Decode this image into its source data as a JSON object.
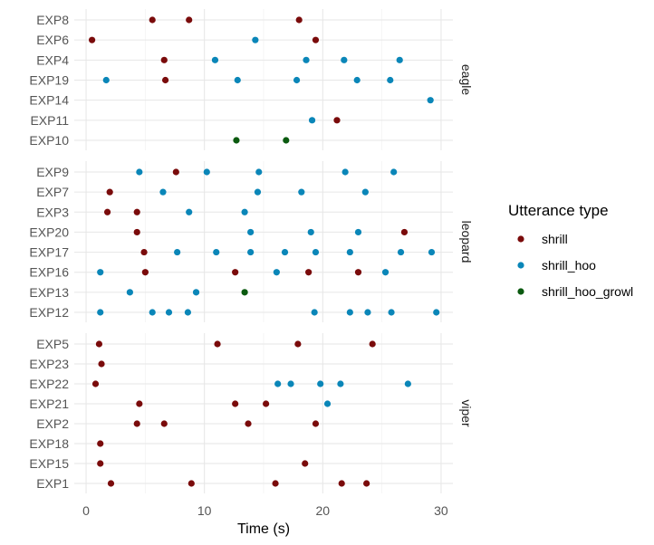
{
  "chart_data": {
    "type": "scatter",
    "xlabel": "Time (s)",
    "xlim": [
      -1,
      31
    ],
    "x_ticks": [
      0,
      10,
      20,
      30
    ],
    "grid": true,
    "legend": {
      "title": "Utterance type",
      "position": "right",
      "entries": [
        {
          "name": "shrill",
          "color": "#7a0b0b"
        },
        {
          "name": "shrill_hoo",
          "color": "#0a86b8"
        },
        {
          "name": "shrill_hoo_growl",
          "color": "#0b5a10"
        }
      ]
    },
    "facets": [
      {
        "label": "eagle",
        "rows": [
          "EXP8",
          "EXP6",
          "EXP4",
          "EXP19",
          "EXP14",
          "EXP11",
          "EXP10"
        ],
        "points": [
          {
            "row": "EXP8",
            "type": "shrill",
            "times": [
              5.6,
              8.7,
              18.0
            ]
          },
          {
            "row": "EXP6",
            "type": "shrill",
            "times": [
              0.5,
              19.4
            ]
          },
          {
            "row": "EXP6",
            "type": "shrill_hoo",
            "times": [
              14.3
            ]
          },
          {
            "row": "EXP4",
            "type": "shrill",
            "times": [
              6.6
            ]
          },
          {
            "row": "EXP4",
            "type": "shrill_hoo",
            "times": [
              10.9,
              18.6,
              21.8,
              26.5
            ]
          },
          {
            "row": "EXP19",
            "type": "shrill",
            "times": [
              6.7
            ]
          },
          {
            "row": "EXP19",
            "type": "shrill_hoo",
            "times": [
              1.7,
              12.8,
              17.8,
              22.9,
              25.7
            ]
          },
          {
            "row": "EXP14",
            "type": "shrill_hoo",
            "times": [
              29.1
            ]
          },
          {
            "row": "EXP11",
            "type": "shrill",
            "times": [
              21.2
            ]
          },
          {
            "row": "EXP11",
            "type": "shrill_hoo",
            "times": [
              19.1
            ]
          },
          {
            "row": "EXP10",
            "type": "shrill_hoo_growl",
            "times": [
              12.7,
              16.9
            ]
          }
        ]
      },
      {
        "label": "leopard",
        "rows": [
          "EXP9",
          "EXP7",
          "EXP3",
          "EXP20",
          "EXP17",
          "EXP16",
          "EXP13",
          "EXP12"
        ],
        "points": [
          {
            "row": "EXP9",
            "type": "shrill",
            "times": [
              7.6
            ]
          },
          {
            "row": "EXP9",
            "type": "shrill_hoo",
            "times": [
              4.5,
              10.2,
              14.6,
              21.9,
              26.0
            ]
          },
          {
            "row": "EXP7",
            "type": "shrill",
            "times": [
              2.0
            ]
          },
          {
            "row": "EXP7",
            "type": "shrill_hoo",
            "times": [
              6.5,
              14.5,
              18.2,
              23.6
            ]
          },
          {
            "row": "EXP3",
            "type": "shrill",
            "times": [
              1.8,
              4.3
            ]
          },
          {
            "row": "EXP3",
            "type": "shrill_hoo",
            "times": [
              8.7,
              13.4
            ]
          },
          {
            "row": "EXP20",
            "type": "shrill",
            "times": [
              4.3,
              26.9
            ]
          },
          {
            "row": "EXP20",
            "type": "shrill_hoo",
            "times": [
              13.9,
              19.0,
              23.0
            ]
          },
          {
            "row": "EXP17",
            "type": "shrill",
            "times": [
              4.9
            ]
          },
          {
            "row": "EXP17",
            "type": "shrill_hoo",
            "times": [
              7.7,
              11.0,
              13.9,
              16.8,
              19.4,
              22.3,
              26.6,
              29.2
            ]
          },
          {
            "row": "EXP16",
            "type": "shrill",
            "times": [
              5.0,
              12.6,
              18.8,
              23.0
            ]
          },
          {
            "row": "EXP16",
            "type": "shrill_hoo",
            "times": [
              1.2,
              16.1,
              25.3
            ]
          },
          {
            "row": "EXP13",
            "type": "shrill_hoo",
            "times": [
              3.7,
              9.3
            ]
          },
          {
            "row": "EXP13",
            "type": "shrill_hoo_growl",
            "times": [
              13.4
            ]
          },
          {
            "row": "EXP12",
            "type": "shrill_hoo",
            "times": [
              1.2,
              5.6,
              7.0,
              8.6,
              19.3,
              22.3,
              23.8,
              25.8,
              29.6
            ]
          }
        ]
      },
      {
        "label": "viper",
        "rows": [
          "EXP5",
          "EXP23",
          "EXP22",
          "EXP21",
          "EXP2",
          "EXP18",
          "EXP15",
          "EXP1"
        ],
        "points": [
          {
            "row": "EXP5",
            "type": "shrill",
            "times": [
              1.1,
              11.1,
              17.9,
              24.2
            ]
          },
          {
            "row": "EXP23",
            "type": "shrill",
            "times": [
              1.3
            ]
          },
          {
            "row": "EXP22",
            "type": "shrill",
            "times": [
              0.8
            ]
          },
          {
            "row": "EXP22",
            "type": "shrill_hoo",
            "times": [
              16.2,
              17.3,
              19.8,
              21.5,
              27.2
            ]
          },
          {
            "row": "EXP21",
            "type": "shrill",
            "times": [
              4.5,
              12.6,
              15.2
            ]
          },
          {
            "row": "EXP21",
            "type": "shrill_hoo",
            "times": [
              20.4
            ]
          },
          {
            "row": "EXP2",
            "type": "shrill",
            "times": [
              4.3,
              6.6,
              13.7,
              19.4
            ]
          },
          {
            "row": "EXP18",
            "type": "shrill",
            "times": [
              1.2
            ]
          },
          {
            "row": "EXP15",
            "type": "shrill",
            "times": [
              1.2,
              18.5
            ]
          },
          {
            "row": "EXP1",
            "type": "shrill",
            "times": [
              2.1,
              8.9,
              16.0,
              21.6,
              23.7
            ]
          }
        ]
      }
    ]
  }
}
